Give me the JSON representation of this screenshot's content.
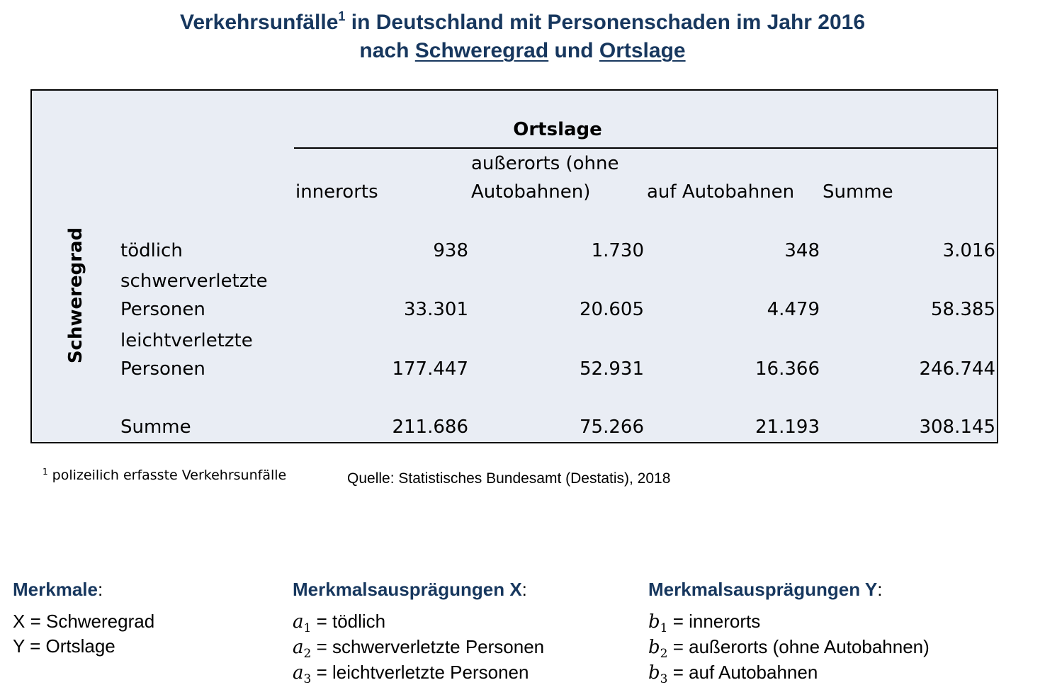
{
  "title": {
    "line1_pre": "Verkehrsunfälle",
    "line1_sup": "1",
    "line1_post": " in Deutschland mit Personenschaden im Jahr 2016",
    "line2_a": "nach ",
    "line2_b": "Schweregrad",
    "line2_c": " und ",
    "line2_d": "Ortslage"
  },
  "table": {
    "col_group_label": "Ortslage",
    "row_group_label": "Schweregrad",
    "columns": [
      "innerorts",
      "außerorts (ohne Autobahnen)",
      "auf Autobahnen",
      "Summe"
    ],
    "col2_line1": "außerorts (ohne",
    "col2_line2": "Autobahnen)",
    "rows": [
      {
        "label_line1": "",
        "label_line2": "tödlich",
        "values": [
          "938",
          "1.730",
          "348",
          "3.016"
        ]
      },
      {
        "label_line1": "schwerverletzte",
        "label_line2": "Personen",
        "values": [
          "33.301",
          "20.605",
          "4.479",
          "58.385"
        ]
      },
      {
        "label_line1": "leichtverletzte",
        "label_line2": "Personen",
        "values": [
          "177.447",
          "52.931",
          "16.366",
          "246.744"
        ]
      }
    ],
    "sum_row": {
      "label": "Summe",
      "values": [
        "211.686",
        "75.266",
        "21.193",
        "308.145"
      ]
    }
  },
  "footnote": {
    "sup": "1",
    "text": " polizeilich erfasste Verkehrsunfälle"
  },
  "source": "Quelle: Statistisches Bundesamt (Destatis), 2018",
  "merkmale": {
    "heading": "Merkmale",
    "colon": ":",
    "items": [
      "X = Schweregrad",
      "Y = Ortslage"
    ]
  },
  "auspraegungen_x": {
    "heading": "Merkmalsausprägungen X",
    "colon": ":",
    "items": [
      {
        "var": "a",
        "sub": "1",
        "text": " = tödlich"
      },
      {
        "var": "a",
        "sub": "2",
        "text": " = schwerverletzte Personen"
      },
      {
        "var": "a",
        "sub": "3",
        "text": " = leichtverletzte Personen"
      }
    ]
  },
  "auspraegungen_y": {
    "heading": "Merkmalsausprägungen Y",
    "colon": ":",
    "items": [
      {
        "var": "b",
        "sub": "1",
        "text": " = innerorts"
      },
      {
        "var": "b",
        "sub": "2",
        "text": " = außerorts (ohne Autobahnen)"
      },
      {
        "var": "b",
        "sub": "3",
        "text": " = auf Autobahnen"
      }
    ]
  },
  "colors": {
    "title": "#17375e",
    "cell_bg": "#e9edf4"
  }
}
